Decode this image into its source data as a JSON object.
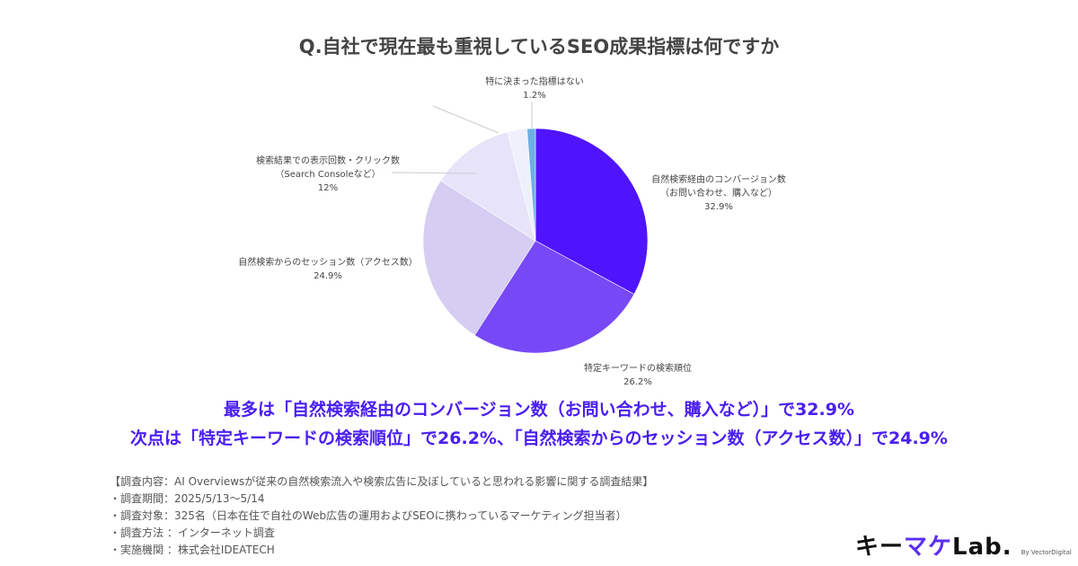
{
  "chart_data": {
    "type": "pie",
    "title": "Q.自社で現在最も重視しているSEO成果指標は何ですか",
    "start": "top",
    "direction": "clockwise",
    "slices": [
      {
        "label": "自然検索経由のコンバージョン数",
        "sub": "（お問い合わせ、購入など）",
        "value": 32.9,
        "value_label": "32.9%",
        "color": "#4f14fb"
      },
      {
        "label": "特定キーワードの検索順位",
        "sub": "",
        "value": 26.2,
        "value_label": "26.2%",
        "color": "#7748f6"
      },
      {
        "label": "自然検索からのセッション数（アクセス数）",
        "sub": "",
        "value": 24.9,
        "value_label": "24.9%",
        "color": "#d5cdf2"
      },
      {
        "label": "検索結果での表示回数・クリック数",
        "sub": "（Search Consoleなど）",
        "value": 12,
        "value_label": "12%",
        "color": "#e7e3f9"
      },
      {
        "label": "",
        "sub": "",
        "value": 2.8,
        "value_label": "",
        "color": "#eef0fb"
      },
      {
        "label": "特に決まった指標はない",
        "sub": "",
        "value": 1.2,
        "value_label": "1.2%",
        "color": "#6cb0e4"
      }
    ]
  },
  "highlights": [
    "最多は「自然検索経由のコンバージョン数（お問い合わせ、購入など）」で32.9%",
    "次点は「特定キーワードの検索順位」で26.2%、「自然検索からのセッション数（アクセス数）」で24.9%"
  ],
  "notes": [
    "【調査内容：AI Overviewsが従来の自然検索流入や検索広告に及ぼしていると思われる影響に関する調査結果】",
    "・調査期間：2025/5/13〜5/14",
    "・調査対象：325名（日本在住で自社のWeb広告の運用およびSEOに携わっているマーケティング担当者）",
    "・調査方法 ：インターネット調査",
    "・実施機関 ：株式会社IDEATECH"
  ],
  "logo": {
    "part1": "キー",
    "part2": "マケ",
    "part3": "Lab.",
    "by": "By VectorDigital"
  }
}
